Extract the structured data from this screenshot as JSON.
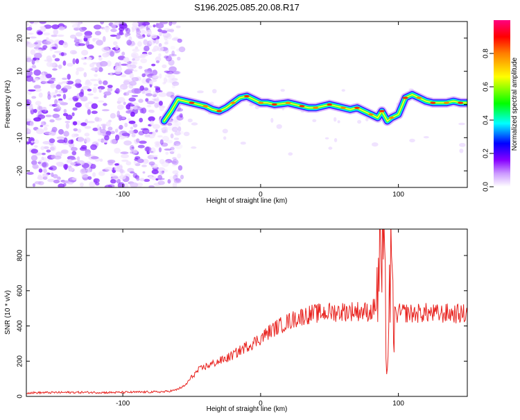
{
  "chart_data": [
    {
      "type": "heatmap",
      "title": "S196.2025.085.20.08.R17",
      "xlabel": "Height of straight line (km)",
      "ylabel": "Frequency (Hz)",
      "xlim": [
        -170,
        150
      ],
      "ylim": [
        -25,
        25
      ],
      "x_ticks": [
        -100,
        0,
        100
      ],
      "y_ticks": [
        -20,
        -10,
        0,
        10,
        20
      ],
      "colorbar": {
        "label": "Normalized spectral amplitude",
        "range": [
          0,
          1
        ],
        "ticks": [
          "0.0",
          "0.2",
          "0.4",
          "0.6",
          "0.8"
        ],
        "colors": [
          "#ffffff",
          "#cc99ff",
          "#8800ff",
          "#0000ff",
          "#00ffff",
          "#00ff00",
          "#ffff00",
          "#ff7f00",
          "#ff0000",
          "#ff0080"
        ]
      },
      "noise_region_x": [
        -170,
        -62
      ],
      "ridge": {
        "x": [
          -70,
          -65,
          -60,
          -55,
          -50,
          -45,
          -40,
          -35,
          -30,
          -25,
          -20,
          -15,
          -10,
          -5,
          0,
          5,
          10,
          15,
          20,
          25,
          30,
          35,
          40,
          45,
          50,
          55,
          60,
          65,
          70,
          75,
          80,
          85,
          88,
          92,
          95,
          100,
          105,
          110,
          115,
          120,
          125,
          130,
          135,
          140,
          145,
          150
        ],
        "freq": [
          -5,
          -2,
          1.5,
          1,
          0.5,
          0,
          -0.5,
          -1.5,
          -2,
          -1,
          0.5,
          2,
          2.5,
          1.5,
          0.5,
          0.5,
          0,
          0.2,
          0.5,
          0,
          -0.5,
          -1,
          -1,
          -0.5,
          0,
          -0.5,
          -1,
          -1.5,
          -1,
          -2,
          -3,
          -4,
          -2,
          -5,
          -4,
          -3,
          2,
          3,
          2,
          1,
          0.5,
          0.5,
          0.5,
          1,
          0.5,
          0.5
        ]
      }
    },
    {
      "type": "line",
      "title": "",
      "xlabel": "Height of straight line (km)",
      "ylabel": "SNR (10 * v/v)",
      "xlim": [
        -170,
        150
      ],
      "ylim": [
        0,
        950
      ],
      "x_ticks": [
        -100,
        0,
        100
      ],
      "y_ticks": [
        0,
        200,
        400,
        600,
        800
      ],
      "series": [
        {
          "color": "#e8231f",
          "x": [
            -170,
            -150,
            -130,
            -110,
            -90,
            -70,
            -62,
            -55,
            -50,
            -45,
            -40,
            -35,
            -30,
            -25,
            -20,
            -15,
            -10,
            -5,
            0,
            5,
            10,
            15,
            20,
            25,
            30,
            35,
            40,
            45,
            50,
            55,
            60,
            65,
            70,
            75,
            80,
            84,
            86,
            88,
            90,
            92,
            94,
            96,
            100,
            105,
            110,
            115,
            120,
            125,
            130,
            135,
            140,
            145,
            150
          ],
          "y": [
            20,
            22,
            23,
            22,
            24,
            26,
            35,
            60,
            110,
            150,
            170,
            185,
            200,
            215,
            235,
            260,
            285,
            305,
            330,
            360,
            385,
            405,
            425,
            440,
            455,
            465,
            470,
            475,
            478,
            480,
            482,
            484,
            485,
            482,
            480,
            520,
            700,
            820,
            600,
            150,
            700,
            460,
            470,
            475,
            470,
            472,
            475,
            470,
            468,
            472,
            470,
            468,
            470
          ]
        }
      ]
    }
  ]
}
